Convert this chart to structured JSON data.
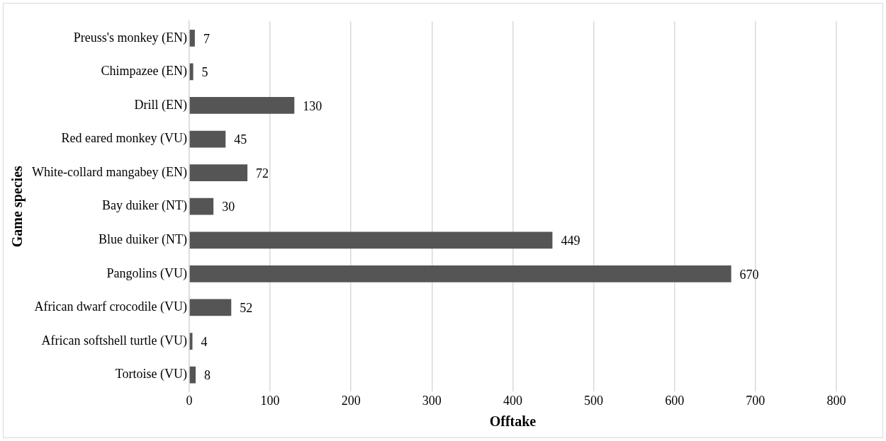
{
  "chart_data": {
    "type": "bar",
    "orientation": "horizontal",
    "xlabel": "Offtake",
    "ylabel": "Game species",
    "categories": [
      "Preuss's monkey (EN)",
      "Chimpazee (EN)",
      "Drill (EN)",
      "Red eared monkey (VU)",
      "White-collard mangabey (EN)",
      "Bay duiker (NT)",
      "Blue duiker (NT)",
      "Pangolins (VU)",
      "African dwarf crocodile (VU)",
      "African softshell turtle (VU)",
      "Tortoise (VU)"
    ],
    "values": [
      7,
      5,
      130,
      45,
      72,
      30,
      449,
      670,
      52,
      4,
      8
    ],
    "color": "#555555",
    "xlim": [
      0,
      800
    ],
    "xticks": [
      0,
      100,
      200,
      300,
      400,
      500,
      600,
      700,
      800
    ],
    "grid": "x",
    "data_labels": true
  }
}
